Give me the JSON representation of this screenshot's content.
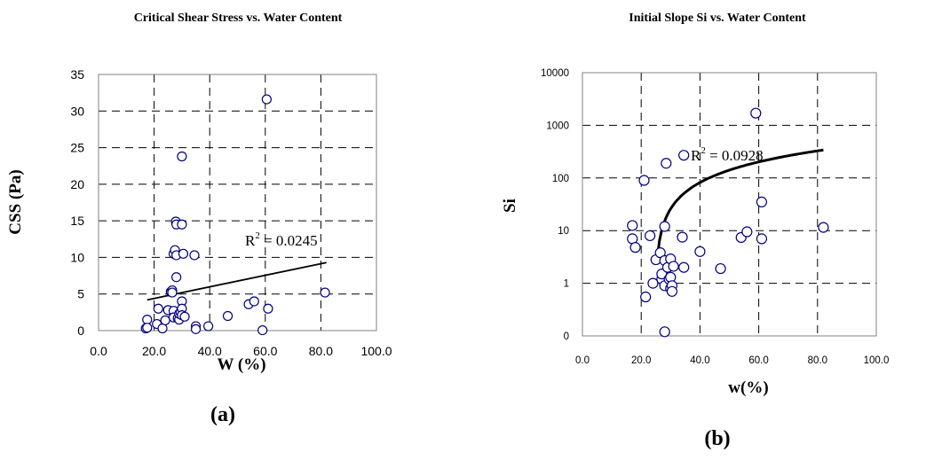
{
  "chart_data": [
    {
      "type": "scatter",
      "title": "Critical Shear Stress vs. Water Content",
      "xlabel": "W (%)",
      "ylabel": "CSS (Pa)",
      "xlim": [
        0,
        100
      ],
      "ylim": [
        0,
        35
      ],
      "xticks": [
        0,
        20,
        40,
        60,
        80,
        100
      ],
      "yticks": [
        0,
        5,
        10,
        15,
        20,
        25,
        30,
        35
      ],
      "xtick_labels": [
        "0.0",
        "20.0",
        "40.0",
        "60.0",
        "80.0",
        "100.0"
      ],
      "ytick_labels": [
        "0",
        "5",
        "10",
        "15",
        "20",
        "25",
        "30",
        "35"
      ],
      "grid": true,
      "panel_label": "(a)",
      "annotation": {
        "base": "R",
        "exp": "2",
        "rest": " = 0.0245"
      },
      "trendline": {
        "type": "linear",
        "x": [
          17.5,
          82
        ],
        "y": [
          4.2,
          9.3
        ]
      },
      "points": [
        {
          "x": 17,
          "y": 0.3
        },
        {
          "x": 17.5,
          "y": 1.5
        },
        {
          "x": 17.5,
          "y": 0.4
        },
        {
          "x": 21,
          "y": 0.9
        },
        {
          "x": 21.5,
          "y": 3.0
        },
        {
          "x": 23,
          "y": 0.3
        },
        {
          "x": 24,
          "y": 1.4
        },
        {
          "x": 25,
          "y": 2.8
        },
        {
          "x": 26,
          "y": 5.3
        },
        {
          "x": 26.5,
          "y": 5.5
        },
        {
          "x": 26.5,
          "y": 5.2
        },
        {
          "x": 27,
          "y": 10.5
        },
        {
          "x": 27,
          "y": 2.7
        },
        {
          "x": 27,
          "y": 1.8
        },
        {
          "x": 27.5,
          "y": 11.0
        },
        {
          "x": 27.8,
          "y": 14.9
        },
        {
          "x": 28,
          "y": 14.5
        },
        {
          "x": 28,
          "y": 10.3
        },
        {
          "x": 28,
          "y": 7.3
        },
        {
          "x": 28.5,
          "y": 1.7
        },
        {
          "x": 29,
          "y": 1.5
        },
        {
          "x": 29,
          "y": 2.3
        },
        {
          "x": 29.5,
          "y": 2.5
        },
        {
          "x": 30,
          "y": 14.5
        },
        {
          "x": 30,
          "y": 4.0
        },
        {
          "x": 30,
          "y": 3.0
        },
        {
          "x": 30,
          "y": 2.1
        },
        {
          "x": 30,
          "y": 23.8
        },
        {
          "x": 30.5,
          "y": 10.5
        },
        {
          "x": 31,
          "y": 1.9
        },
        {
          "x": 34.5,
          "y": 10.3
        },
        {
          "x": 35,
          "y": 0.6
        },
        {
          "x": 35,
          "y": 0.2
        },
        {
          "x": 39.5,
          "y": 0.6
        },
        {
          "x": 46.5,
          "y": 2.0
        },
        {
          "x": 54,
          "y": 3.6
        },
        {
          "x": 56,
          "y": 4.0
        },
        {
          "x": 59,
          "y": 0.05
        },
        {
          "x": 60.5,
          "y": 31.6
        },
        {
          "x": 61,
          "y": 3.0
        },
        {
          "x": 81.5,
          "y": 5.2
        }
      ]
    },
    {
      "type": "scatter",
      "title": "Initial Slope Si vs. Water Content",
      "xlabel": "w(%)",
      "ylabel": "Si",
      "xlim": [
        0,
        100
      ],
      "ylim": [
        0.1,
        10000
      ],
      "yscale": "log",
      "xticks": [
        0,
        20,
        40,
        60,
        80,
        100
      ],
      "yticks": [
        0.1,
        1,
        10,
        100,
        1000,
        10000
      ],
      "xtick_labels": [
        "0.0",
        "20.0",
        "40.0",
        "60.0",
        "80.0",
        "100.0"
      ],
      "ytick_labels": [
        "0",
        "1",
        "10",
        "100",
        "1000",
        "10000"
      ],
      "grid": true,
      "panel_label": "(b)",
      "annotation": {
        "base": "R",
        "exp": "2",
        "rest": " = 0.0928"
      },
      "trendline": {
        "type": "log",
        "x_start": 25.5,
        "x_end": 82
      },
      "points": [
        {
          "x": 17,
          "y": 12.5
        },
        {
          "x": 17,
          "y": 7.0
        },
        {
          "x": 18,
          "y": 4.8
        },
        {
          "x": 21,
          "y": 90
        },
        {
          "x": 21.5,
          "y": 0.55
        },
        {
          "x": 23,
          "y": 8.0
        },
        {
          "x": 24,
          "y": 1.0
        },
        {
          "x": 25,
          "y": 2.8
        },
        {
          "x": 26.5,
          "y": 3.8
        },
        {
          "x": 27,
          "y": 1.2
        },
        {
          "x": 27,
          "y": 1.5
        },
        {
          "x": 28,
          "y": 12.0
        },
        {
          "x": 28,
          "y": 2.7
        },
        {
          "x": 28,
          "y": 0.9
        },
        {
          "x": 28,
          "y": 0.12
        },
        {
          "x": 28.5,
          "y": 190
        },
        {
          "x": 29,
          "y": 2.0
        },
        {
          "x": 29.5,
          "y": 1.2
        },
        {
          "x": 30,
          "y": 2.9
        },
        {
          "x": 30,
          "y": 1.3
        },
        {
          "x": 30,
          "y": 0.8
        },
        {
          "x": 30.5,
          "y": 0.9
        },
        {
          "x": 30.5,
          "y": 0.7
        },
        {
          "x": 31,
          "y": 2.1
        },
        {
          "x": 34,
          "y": 7.5
        },
        {
          "x": 34.5,
          "y": 2.0
        },
        {
          "x": 34.5,
          "y": 270
        },
        {
          "x": 40,
          "y": 4.0
        },
        {
          "x": 47,
          "y": 1.9
        },
        {
          "x": 54,
          "y": 7.4
        },
        {
          "x": 56,
          "y": 9.5
        },
        {
          "x": 59,
          "y": 1700
        },
        {
          "x": 61,
          "y": 35
        },
        {
          "x": 61,
          "y": 7.0
        },
        {
          "x": 82,
          "y": 11.5
        }
      ]
    }
  ]
}
